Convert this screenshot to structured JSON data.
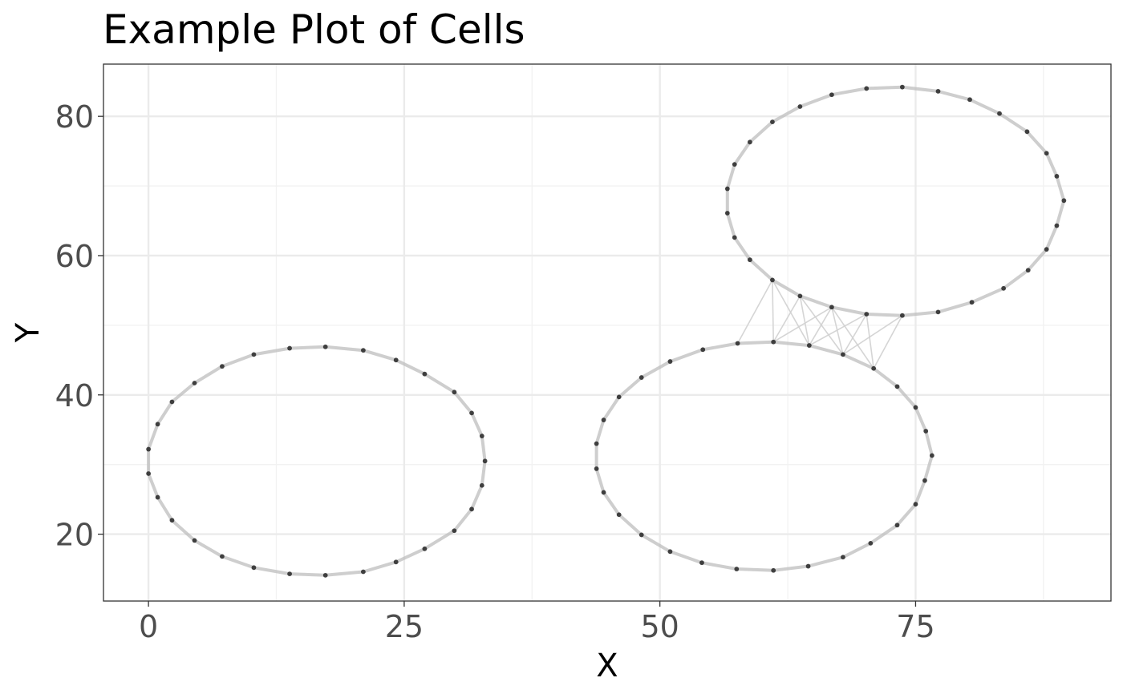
{
  "chart_data": {
    "type": "scatter",
    "title": "Example Plot of Cells",
    "xlabel": "X",
    "ylabel": "Y",
    "xlim": [
      -4.4,
      94.1
    ],
    "ylim": [
      10.4,
      87.5
    ],
    "x_ticks": [
      0,
      25,
      50,
      75
    ],
    "y_ticks": [
      20,
      40,
      60,
      80
    ],
    "x_tick_labels": [
      "0",
      "25",
      "50",
      "75"
    ],
    "y_tick_labels": [
      "20",
      "40",
      "60",
      "80"
    ],
    "grid": true,
    "legend": "none",
    "colors": {
      "point": "#1a1a1a",
      "ring_edge": "#bdbdbd",
      "cross_edge": "#d0d0d0",
      "grid_major": "#ebebeb",
      "grid_minor": "#f2f2f2",
      "panel_border": "#333333"
    },
    "cells": [
      {
        "points": [
          [
            32.9,
            30.5
          ],
          [
            32.6,
            27.0
          ],
          [
            31.6,
            23.6
          ],
          [
            29.9,
            20.5
          ],
          [
            27.0,
            17.9
          ],
          [
            24.2,
            16.0
          ],
          [
            21.0,
            14.6
          ],
          [
            17.3,
            14.1
          ],
          [
            13.8,
            14.3
          ],
          [
            10.3,
            15.2
          ],
          [
            7.2,
            16.8
          ],
          [
            4.5,
            19.1
          ],
          [
            2.3,
            22.0
          ],
          [
            0.9,
            25.3
          ],
          [
            0.0,
            28.7
          ],
          [
            0.0,
            32.2
          ],
          [
            0.9,
            35.8
          ],
          [
            2.3,
            39.0
          ],
          [
            4.5,
            41.7
          ],
          [
            7.2,
            44.1
          ],
          [
            10.3,
            45.8
          ],
          [
            13.8,
            46.7
          ],
          [
            17.3,
            46.9
          ],
          [
            21.0,
            46.4
          ],
          [
            24.2,
            45.0
          ],
          [
            27.0,
            43.0
          ],
          [
            29.9,
            40.4
          ],
          [
            31.6,
            37.4
          ],
          [
            32.6,
            34.1
          ]
        ]
      },
      {
        "points": [
          [
            76.6,
            31.3
          ],
          [
            75.9,
            27.7
          ],
          [
            75.0,
            24.3
          ],
          [
            73.2,
            21.3
          ],
          [
            70.6,
            18.7
          ],
          [
            67.9,
            16.7
          ],
          [
            64.5,
            15.4
          ],
          [
            61.1,
            14.8
          ],
          [
            57.5,
            15.0
          ],
          [
            54.1,
            15.9
          ],
          [
            51.0,
            17.5
          ],
          [
            48.2,
            19.9
          ],
          [
            46.0,
            22.8
          ],
          [
            44.5,
            26.0
          ],
          [
            43.8,
            29.4
          ],
          [
            43.8,
            33.0
          ],
          [
            44.5,
            36.4
          ],
          [
            46.0,
            39.7
          ],
          [
            48.2,
            42.5
          ],
          [
            51.0,
            44.8
          ],
          [
            54.2,
            46.5
          ],
          [
            57.6,
            47.4
          ],
          [
            61.1,
            47.6
          ],
          [
            64.6,
            47.1
          ],
          [
            67.9,
            45.8
          ],
          [
            70.9,
            43.8
          ],
          [
            73.2,
            41.2
          ],
          [
            75.0,
            38.2
          ],
          [
            76.0,
            34.8
          ]
        ]
      },
      {
        "points": [
          [
            89.5,
            67.9
          ],
          [
            88.8,
            71.4
          ],
          [
            87.8,
            74.7
          ],
          [
            85.9,
            77.8
          ],
          [
            83.2,
            80.4
          ],
          [
            80.3,
            82.4
          ],
          [
            77.2,
            83.6
          ],
          [
            73.7,
            84.2
          ],
          [
            70.2,
            84.0
          ],
          [
            66.8,
            83.1
          ],
          [
            63.7,
            81.4
          ],
          [
            61.0,
            79.2
          ],
          [
            58.8,
            76.3
          ],
          [
            57.3,
            73.1
          ],
          [
            56.6,
            69.6
          ],
          [
            56.6,
            66.1
          ],
          [
            57.3,
            62.6
          ],
          [
            58.8,
            59.4
          ],
          [
            61.0,
            56.5
          ],
          [
            63.7,
            54.2
          ],
          [
            66.8,
            52.6
          ],
          [
            70.2,
            51.6
          ],
          [
            73.7,
            51.4
          ],
          [
            77.2,
            51.9
          ],
          [
            80.5,
            53.3
          ],
          [
            83.6,
            55.3
          ],
          [
            86.0,
            57.9
          ],
          [
            87.8,
            60.9
          ],
          [
            88.8,
            64.3
          ]
        ]
      }
    ],
    "cross_edges": [
      [
        [
          57.6,
          47.4
        ],
        [
          61.0,
          56.5
        ]
      ],
      [
        [
          61.1,
          47.6
        ],
        [
          61.0,
          56.5
        ]
      ],
      [
        [
          61.1,
          47.6
        ],
        [
          63.7,
          54.2
        ]
      ],
      [
        [
          61.1,
          47.6
        ],
        [
          66.8,
          52.6
        ]
      ],
      [
        [
          64.6,
          47.1
        ],
        [
          61.0,
          56.5
        ]
      ],
      [
        [
          64.6,
          47.1
        ],
        [
          63.7,
          54.2
        ]
      ],
      [
        [
          64.6,
          47.1
        ],
        [
          66.8,
          52.6
        ]
      ],
      [
        [
          64.6,
          47.1
        ],
        [
          70.2,
          51.6
        ]
      ],
      [
        [
          67.9,
          45.8
        ],
        [
          63.7,
          54.2
        ]
      ],
      [
        [
          67.9,
          45.8
        ],
        [
          66.8,
          52.6
        ]
      ],
      [
        [
          67.9,
          45.8
        ],
        [
          70.2,
          51.6
        ]
      ],
      [
        [
          67.9,
          45.8
        ],
        [
          73.7,
          51.4
        ]
      ],
      [
        [
          70.9,
          43.8
        ],
        [
          66.8,
          52.6
        ]
      ],
      [
        [
          70.9,
          43.8
        ],
        [
          70.2,
          51.6
        ]
      ],
      [
        [
          70.9,
          43.8
        ],
        [
          73.7,
          51.4
        ]
      ]
    ]
  }
}
